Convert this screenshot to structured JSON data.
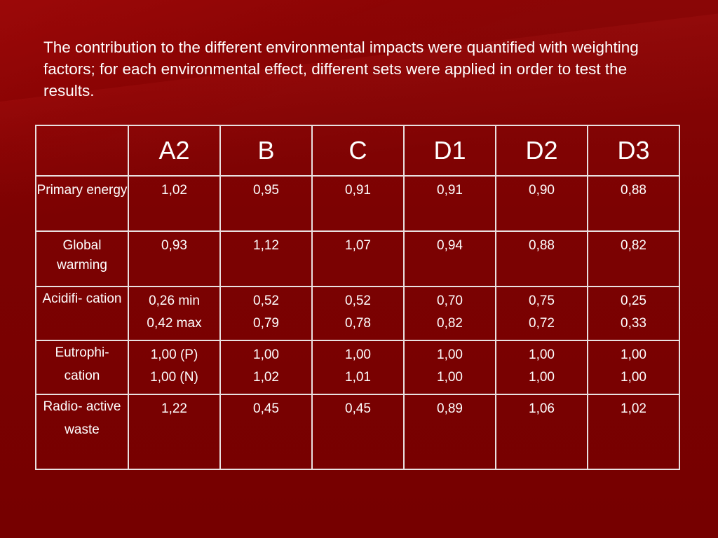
{
  "title": "The contribution to the different environmental impacts were quantified with weighting factors; for each environmental effect, different sets were applied in order to test the results.",
  "table": {
    "headers": [
      "",
      "A2",
      "B",
      "C",
      "D1",
      "D2",
      "D3"
    ],
    "rows": [
      {
        "label": [
          "Primary",
          "energy"
        ],
        "cells": [
          [
            "1,02"
          ],
          [
            "0,95"
          ],
          [
            "0,91"
          ],
          [
            "0,91"
          ],
          [
            "0,90"
          ],
          [
            "0,88"
          ]
        ]
      },
      {
        "label": [
          "Global",
          "warming"
        ],
        "cells": [
          [
            "0,93"
          ],
          [
            "1,12"
          ],
          [
            "1,07"
          ],
          [
            "0,94"
          ],
          [
            "0,88"
          ],
          [
            "0,82"
          ]
        ]
      },
      {
        "label": [
          "Acidifi-",
          "cation"
        ],
        "cells": [
          [
            "0,26 min",
            "0,42 max"
          ],
          [
            "0,52",
            "0,79"
          ],
          [
            "0,52",
            "0,78"
          ],
          [
            "0,70",
            "0,82"
          ],
          [
            "0,75",
            "0,72"
          ],
          [
            "0,25",
            "0,33"
          ]
        ]
      },
      {
        "label": [
          "Eutrophi-",
          "cation"
        ],
        "cells": [
          [
            "1,00 (P)",
            "1,00 (N)"
          ],
          [
            "1,00",
            "1,02"
          ],
          [
            "1,00",
            "1,01"
          ],
          [
            "1,00",
            "1,00"
          ],
          [
            "1,00",
            "1,00"
          ],
          [
            "1,00",
            "1,00"
          ]
        ]
      },
      {
        "label": [
          "Radio-",
          "active",
          "waste"
        ],
        "cells": [
          [
            "1,22"
          ],
          [
            "0,45"
          ],
          [
            "0,45"
          ],
          [
            "0,89"
          ],
          [
            "1,06"
          ],
          [
            "1,02"
          ]
        ]
      }
    ]
  },
  "colors": {
    "background": "#7a0000",
    "text": "#ffffff",
    "grid": "#e9e0e0"
  }
}
